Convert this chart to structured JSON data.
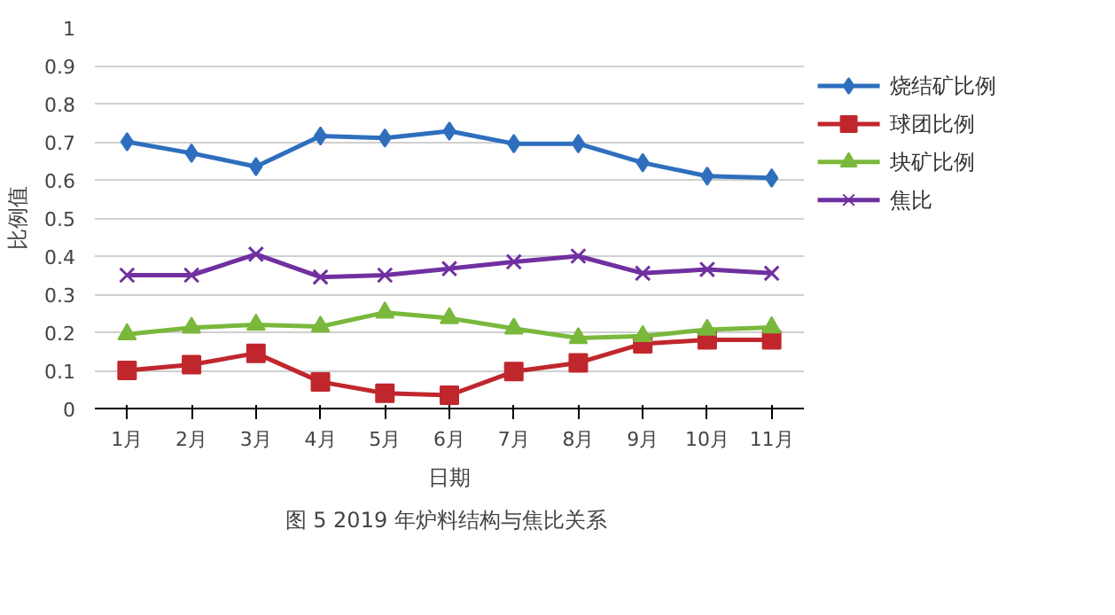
{
  "chart_data": {
    "type": "line",
    "title": "图 5  2019 年炉料结构与焦比关系",
    "xlabel": "日期",
    "ylabel": "比例值",
    "categories": [
      "1月",
      "2月",
      "3月",
      "4月",
      "5月",
      "6月",
      "7月",
      "8月",
      "9月",
      "10月",
      "11月"
    ],
    "series": [
      {
        "name": "烧结矿比例",
        "color": "#2e6fbd",
        "marker": "diamond",
        "values": [
          0.7,
          0.67,
          0.635,
          0.715,
          0.71,
          0.728,
          0.695,
          0.695,
          0.645,
          0.61,
          0.605
        ]
      },
      {
        "name": "球团比例",
        "color": "#c0272d",
        "marker": "square",
        "values": [
          0.1,
          0.115,
          0.145,
          0.07,
          0.04,
          0.035,
          0.097,
          0.12,
          0.17,
          0.18,
          0.18
        ]
      },
      {
        "name": "块矿比例",
        "color": "#7ab83c",
        "marker": "triangle",
        "values": [
          0.195,
          0.212,
          0.22,
          0.215,
          0.252,
          0.237,
          0.21,
          0.185,
          0.19,
          0.207,
          0.213
        ]
      },
      {
        "name": "焦比",
        "color": "#7030a0",
        "marker": "cross",
        "values": [
          0.35,
          0.35,
          0.405,
          0.345,
          0.35,
          0.367,
          0.385,
          0.4,
          0.355,
          0.365,
          0.355
        ]
      }
    ],
    "ylim": [
      0,
      1
    ],
    "yticks": [
      0,
      0.1,
      0.2,
      0.3,
      0.4,
      0.5,
      0.6,
      0.7,
      0.8,
      0.9,
      1
    ],
    "grid": "y",
    "legend": "right",
    "line_style": "solid"
  }
}
